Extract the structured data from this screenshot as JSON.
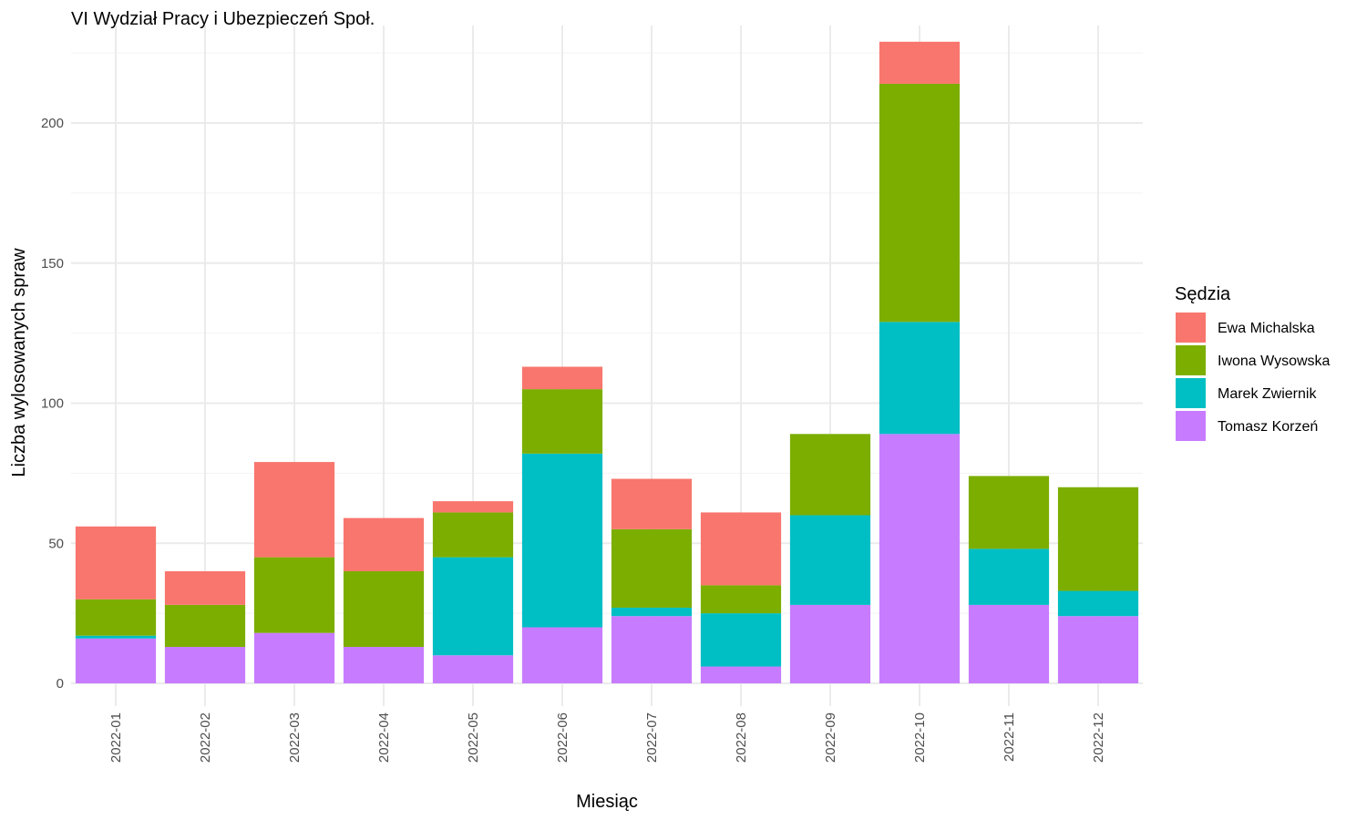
{
  "chart_data": {
    "type": "bar",
    "stacked": true,
    "title": "VI Wydział Pracy i Ubezpieczeń Społ.",
    "xlabel": "Miesiąc",
    "ylabel": "Liczba wylosowanych spraw",
    "ylim": [
      0,
      240
    ],
    "yticks": [
      0,
      50,
      100,
      150,
      200
    ],
    "grid": true,
    "legend": {
      "title": "Sędzia",
      "position": "right"
    },
    "categories": [
      "2022-01",
      "2022-02",
      "2022-03",
      "2022-04",
      "2022-05",
      "2022-06",
      "2022-07",
      "2022-08",
      "2022-09",
      "2022-10",
      "2022-11",
      "2022-12"
    ],
    "series": [
      {
        "name": "Ewa Michalska",
        "color": "#F8766D",
        "values": [
          26,
          12,
          34,
          19,
          4,
          8,
          18,
          26,
          0,
          15,
          0,
          0
        ]
      },
      {
        "name": "Iwona Wysowska",
        "color": "#7CAE00",
        "values": [
          13,
          15,
          27,
          27,
          16,
          23,
          28,
          10,
          29,
          85,
          26,
          37
        ]
      },
      {
        "name": "Marek Zwiernik",
        "color": "#00BFC4",
        "values": [
          1,
          0,
          0,
          0,
          35,
          62,
          3,
          19,
          32,
          40,
          20,
          9
        ]
      },
      {
        "name": "Tomasz Korzeń",
        "color": "#C77CFF",
        "values": [
          16,
          13,
          18,
          13,
          10,
          20,
          24,
          6,
          28,
          89,
          28,
          24
        ]
      }
    ]
  }
}
